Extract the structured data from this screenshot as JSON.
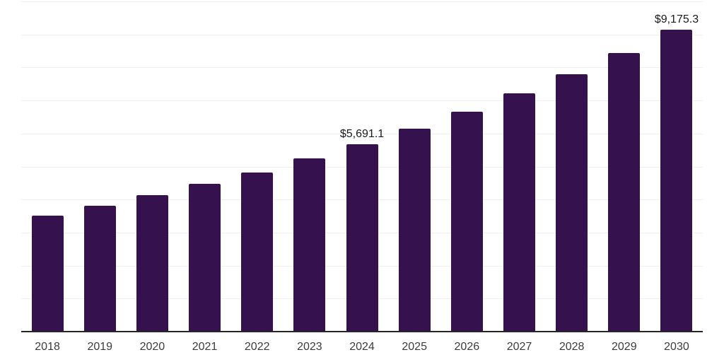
{
  "chart_data": {
    "type": "bar",
    "title": "",
    "xlabel": "",
    "ylabel": "",
    "legend": "none",
    "grid": "horizontal",
    "categories": [
      "2018",
      "2019",
      "2020",
      "2021",
      "2022",
      "2023",
      "2024",
      "2025",
      "2026",
      "2027",
      "2028",
      "2029",
      "2030"
    ],
    "values": [
      3530,
      3830,
      4150,
      4490,
      4850,
      5270,
      5691.1,
      6160,
      6680,
      7230,
      7820,
      8460,
      9175.3
    ],
    "data_labels": {
      "2024": "$5,691.1",
      "2030": "$9,175.3"
    },
    "ylim": [
      0,
      10000
    ],
    "gridline_step": 1000,
    "colors": {
      "bar": "#35124e",
      "axis": "#262626",
      "gridline": "#efefef",
      "data_label": "#1a1a1a",
      "tick_label": "#3c3c3c",
      "background": "#ffffff"
    }
  }
}
